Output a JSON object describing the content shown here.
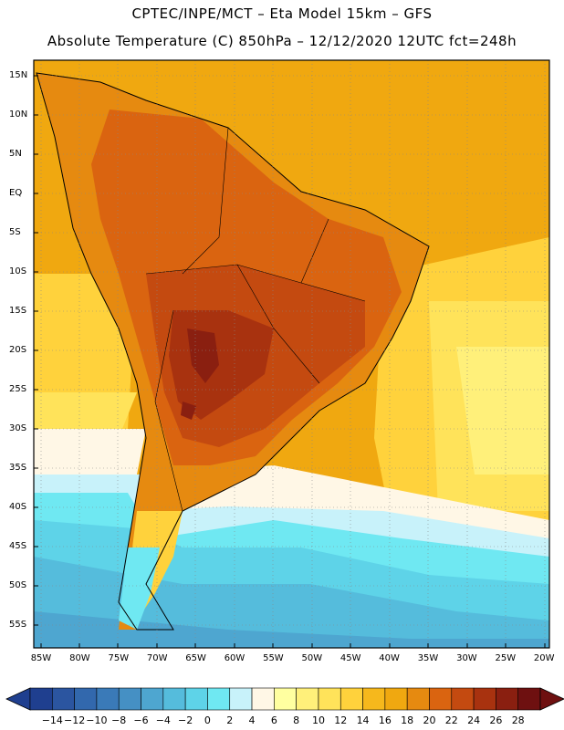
{
  "header": {
    "line1": "CPTEC/INPE/MCT –  Eta Model 15km – GFS",
    "line2": "Absolute Temperature (C) 850hPa – 12/12/2020 12UTC fct=248h"
  },
  "axes": {
    "lat_labels": [
      "15N",
      "10N",
      "5N",
      "EQ",
      "5S",
      "10S",
      "15S",
      "20S",
      "25S",
      "30S",
      "35S",
      "40S",
      "45S",
      "50S",
      "55S"
    ],
    "lon_labels": [
      "85W",
      "80W",
      "75W",
      "70W",
      "65W",
      "60W",
      "55W",
      "50W",
      "45W",
      "40W",
      "35W",
      "30W",
      "25W",
      "20W"
    ]
  },
  "colorbar": {
    "labels": [
      "-14",
      "-12",
      "-10",
      "-8",
      "-6",
      "-4",
      "-2",
      "0",
      "2",
      "4",
      "6",
      "8",
      "10",
      "12",
      "14",
      "16",
      "18",
      "20",
      "22",
      "24",
      "26",
      "28"
    ],
    "colors": [
      "#1f3f8f",
      "#2b55a0",
      "#3268ad",
      "#3a7ab8",
      "#4590c4",
      "#4ea6d0",
      "#55bcdc",
      "#5ed3e8",
      "#6fe8f2",
      "#c8f2fa",
      "#fff7e6",
      "#ffffa0",
      "#fff07a",
      "#ffe35a",
      "#ffd23c",
      "#f6b81c",
      "#f0a810",
      "#e68a10",
      "#da6410",
      "#c44a10",
      "#a8320f",
      "#8a1f10",
      "#6e1010"
    ]
  }
}
